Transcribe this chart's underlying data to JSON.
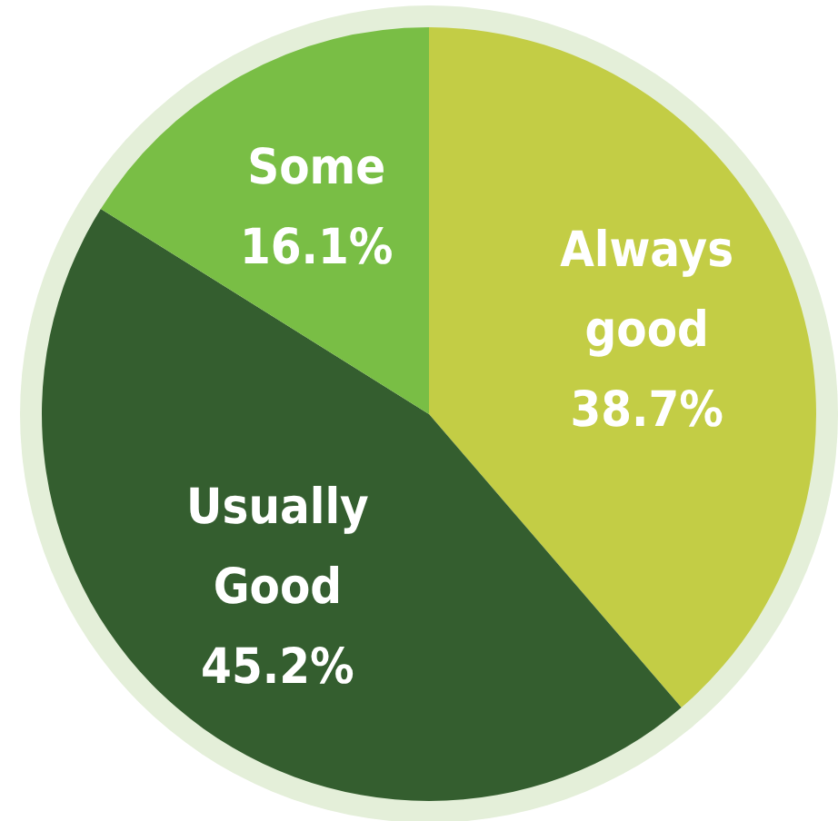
{
  "chart_data": {
    "type": "pie",
    "categories": [
      "Always good",
      "Usually Good",
      "Some"
    ],
    "values": [
      38.7,
      45.2,
      16.1
    ],
    "value_labels": [
      "38.7%",
      "45.2%",
      "16.1%"
    ],
    "colors": [
      "#c3cd45",
      "#345e2f",
      "#79be45"
    ]
  }
}
